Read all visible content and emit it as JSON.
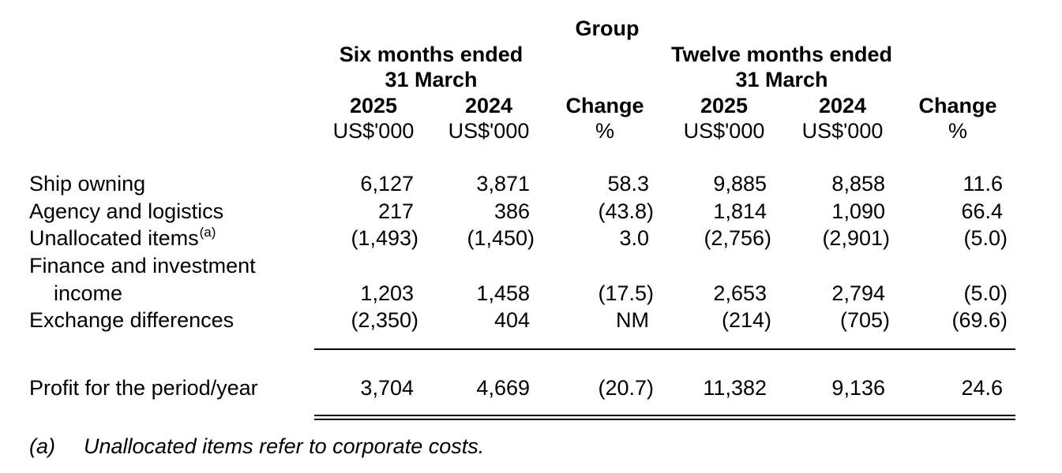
{
  "header": {
    "group_label": "Group",
    "six_months": {
      "line1": "Six months ended",
      "line2": "31 March"
    },
    "twelve_months": {
      "line1": "Twelve months ended",
      "line2": "31 March"
    },
    "columns": [
      {
        "year": "2025",
        "unit": "US$'000"
      },
      {
        "year": "2024",
        "unit": "US$'000"
      },
      {
        "year": "Change",
        "unit": "%"
      },
      {
        "year": "2025",
        "unit": "US$'000"
      },
      {
        "year": "2024",
        "unit": "US$'000"
      },
      {
        "year": "Change",
        "unit": "%"
      }
    ]
  },
  "rows": [
    {
      "label": "Ship owning",
      "values": [
        "6,127",
        "3,871",
        "58.3",
        "9,885",
        "8,858",
        "11.6"
      ]
    },
    {
      "label": "Agency and logistics",
      "values": [
        "217",
        "386",
        "(43.8)",
        "1,814",
        "1,090",
        "66.4"
      ]
    },
    {
      "label": "Unallocated items",
      "label_superscript": "(a)",
      "values": [
        "(1,493)",
        "(1,450)",
        "3.0",
        "(2,756)",
        "(2,901)",
        "(5.0)"
      ]
    },
    {
      "label": "Finance and investment",
      "label_line2": "income",
      "values": [
        "1,203",
        "1,458",
        "(17.5)",
        "2,653",
        "2,794",
        "(5.0)"
      ]
    },
    {
      "label": "Exchange differences",
      "values": [
        "(2,350)",
        "404",
        "NM",
        "(214)",
        "(705)",
        "(69.6)"
      ]
    }
  ],
  "total": {
    "label": "Profit for the period/year",
    "values": [
      "3,704",
      "4,669",
      "(20.7)",
      "11,382",
      "9,136",
      "24.6"
    ]
  },
  "footnote": {
    "marker": "(a)",
    "text": "Unallocated items refer to corporate costs."
  }
}
